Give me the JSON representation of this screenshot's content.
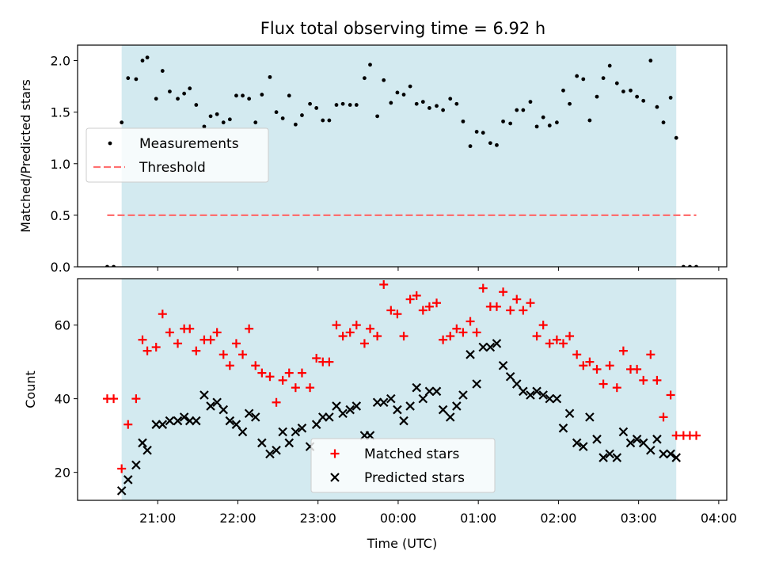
{
  "title": "Flux total observing time = 6.92 h",
  "chart_data": [
    {
      "type": "scatter",
      "ylabel": "Matched/Predicted stars",
      "xlim_hours": [
        20.0,
        28.1
      ],
      "ylim": [
        0,
        2.15
      ],
      "yticks": [
        0.0,
        0.5,
        1.0,
        1.5,
        2.0
      ],
      "ytick_labels": [
        "0.0",
        "0.5",
        "1.0",
        "1.5",
        "2.0"
      ],
      "observing_window_hours": [
        20.55,
        27.47
      ],
      "observing_window_color": "#d3eaf0",
      "threshold": {
        "name": "Threshold",
        "value": 0.5,
        "x_range_hours": [
          20.37,
          27.72
        ],
        "color": "#ff7070",
        "dash": true
      },
      "legend_position": "center-left",
      "series": [
        {
          "name": "Measurements",
          "marker": "dot",
          "color": "#000000",
          "points": [
            [
              20.37,
              0.0
            ],
            [
              20.45,
              0.0
            ],
            [
              20.55,
              1.4
            ],
            [
              20.63,
              1.83
            ],
            [
              20.73,
              1.82
            ],
            [
              20.81,
              2.0
            ],
            [
              20.87,
              2.03
            ],
            [
              20.98,
              1.63
            ],
            [
              21.06,
              1.9
            ],
            [
              21.15,
              1.7
            ],
            [
              21.25,
              1.63
            ],
            [
              21.33,
              1.68
            ],
            [
              21.4,
              1.73
            ],
            [
              21.48,
              1.57
            ],
            [
              21.58,
              1.36
            ],
            [
              21.66,
              1.46
            ],
            [
              21.74,
              1.48
            ],
            [
              21.82,
              1.4
            ],
            [
              21.9,
              1.43
            ],
            [
              21.98,
              1.66
            ],
            [
              22.06,
              1.66
            ],
            [
              22.14,
              1.63
            ],
            [
              22.22,
              1.4
            ],
            [
              22.3,
              1.67
            ],
            [
              22.4,
              1.84
            ],
            [
              22.48,
              1.5
            ],
            [
              22.56,
              1.44
            ],
            [
              22.64,
              1.66
            ],
            [
              22.72,
              1.38
            ],
            [
              22.8,
              1.47
            ],
            [
              22.9,
              1.58
            ],
            [
              22.98,
              1.54
            ],
            [
              23.06,
              1.42
            ],
            [
              23.14,
              1.42
            ],
            [
              23.23,
              1.57
            ],
            [
              23.31,
              1.58
            ],
            [
              23.4,
              1.57
            ],
            [
              23.48,
              1.57
            ],
            [
              23.58,
              1.83
            ],
            [
              23.65,
              1.96
            ],
            [
              23.74,
              1.46
            ],
            [
              23.82,
              1.81
            ],
            [
              23.91,
              1.59
            ],
            [
              23.99,
              1.69
            ],
            [
              24.07,
              1.67
            ],
            [
              24.15,
              1.75
            ],
            [
              24.23,
              1.58
            ],
            [
              24.31,
              1.6
            ],
            [
              24.39,
              1.54
            ],
            [
              24.48,
              1.56
            ],
            [
              24.56,
              1.52
            ],
            [
              24.65,
              1.63
            ],
            [
              24.73,
              1.58
            ],
            [
              24.81,
              1.41
            ],
            [
              24.9,
              1.17
            ],
            [
              24.98,
              1.31
            ],
            [
              25.06,
              1.3
            ],
            [
              25.15,
              1.2
            ],
            [
              25.23,
              1.18
            ],
            [
              25.31,
              1.41
            ],
            [
              25.4,
              1.39
            ],
            [
              25.48,
              1.52
            ],
            [
              25.56,
              1.52
            ],
            [
              25.65,
              1.6
            ],
            [
              25.73,
              1.36
            ],
            [
              25.81,
              1.45
            ],
            [
              25.89,
              1.37
            ],
            [
              25.98,
              1.4
            ],
            [
              26.06,
              1.71
            ],
            [
              26.14,
              1.58
            ],
            [
              26.23,
              1.85
            ],
            [
              26.31,
              1.82
            ],
            [
              26.39,
              1.42
            ],
            [
              26.48,
              1.65
            ],
            [
              26.56,
              1.83
            ],
            [
              26.64,
              1.95
            ],
            [
              26.73,
              1.78
            ],
            [
              26.81,
              1.7
            ],
            [
              26.9,
              1.71
            ],
            [
              26.98,
              1.65
            ],
            [
              27.06,
              1.61
            ],
            [
              27.15,
              2.0
            ],
            [
              27.23,
              1.55
            ],
            [
              27.31,
              1.4
            ],
            [
              27.4,
              1.64
            ],
            [
              27.47,
              1.25
            ],
            [
              27.56,
              0.0
            ],
            [
              27.64,
              0.0
            ],
            [
              27.72,
              0.0
            ]
          ]
        }
      ]
    },
    {
      "type": "scatter",
      "ylabel": "Count",
      "xlabel": "Time (UTC)",
      "xlim_hours": [
        20.0,
        28.1
      ],
      "ylim": [
        12.4,
        72.6
      ],
      "xticks_hours": [
        21,
        22,
        23,
        24,
        25,
        26,
        27,
        28
      ],
      "xtick_labels": [
        "21:00",
        "22:00",
        "23:00",
        "00:00",
        "01:00",
        "02:00",
        "03:00",
        "04:00"
      ],
      "yticks": [
        20,
        40,
        60
      ],
      "ytick_labels": [
        "20",
        "40",
        "60"
      ],
      "observing_window_hours": [
        20.55,
        27.47
      ],
      "observing_window_color": "#d3eaf0",
      "legend_position": "lower-center",
      "series": [
        {
          "name": "Matched stars",
          "marker": "plus",
          "color": "#ff0000",
          "points": [
            [
              20.37,
              40
            ],
            [
              20.45,
              40
            ],
            [
              20.55,
              21
            ],
            [
              20.63,
              33
            ],
            [
              20.73,
              40
            ],
            [
              20.81,
              56
            ],
            [
              20.87,
              53
            ],
            [
              20.98,
              54
            ],
            [
              21.06,
              63
            ],
            [
              21.15,
              58
            ],
            [
              21.25,
              55
            ],
            [
              21.33,
              59
            ],
            [
              21.4,
              59
            ],
            [
              21.48,
              53
            ],
            [
              21.58,
              56
            ],
            [
              21.66,
              56
            ],
            [
              21.74,
              58
            ],
            [
              21.82,
              52
            ],
            [
              21.9,
              49
            ],
            [
              21.98,
              55
            ],
            [
              22.06,
              52
            ],
            [
              22.14,
              59
            ],
            [
              22.22,
              49
            ],
            [
              22.3,
              47
            ],
            [
              22.4,
              46
            ],
            [
              22.48,
              39
            ],
            [
              22.56,
              45
            ],
            [
              22.64,
              47
            ],
            [
              22.72,
              43
            ],
            [
              22.8,
              47
            ],
            [
              22.9,
              43
            ],
            [
              22.98,
              51
            ],
            [
              23.06,
              50
            ],
            [
              23.14,
              50
            ],
            [
              23.23,
              60
            ],
            [
              23.31,
              57
            ],
            [
              23.4,
              58
            ],
            [
              23.48,
              60
            ],
            [
              23.58,
              55
            ],
            [
              23.65,
              59
            ],
            [
              23.74,
              57
            ],
            [
              23.82,
              71
            ],
            [
              23.91,
              64
            ],
            [
              23.99,
              63
            ],
            [
              24.07,
              57
            ],
            [
              24.15,
              67
            ],
            [
              24.23,
              68
            ],
            [
              24.31,
              64
            ],
            [
              24.39,
              65
            ],
            [
              24.48,
              66
            ],
            [
              24.56,
              56
            ],
            [
              24.65,
              57
            ],
            [
              24.73,
              59
            ],
            [
              24.81,
              58
            ],
            [
              24.9,
              61
            ],
            [
              24.98,
              58
            ],
            [
              25.06,
              70
            ],
            [
              25.15,
              65
            ],
            [
              25.23,
              65
            ],
            [
              25.31,
              69
            ],
            [
              25.4,
              64
            ],
            [
              25.48,
              67
            ],
            [
              25.56,
              64
            ],
            [
              25.65,
              66
            ],
            [
              25.73,
              57
            ],
            [
              25.81,
              60
            ],
            [
              25.89,
              55
            ],
            [
              25.98,
              56
            ],
            [
              26.06,
              55
            ],
            [
              26.14,
              57
            ],
            [
              26.23,
              52
            ],
            [
              26.31,
              49
            ],
            [
              26.39,
              50
            ],
            [
              26.48,
              48
            ],
            [
              26.56,
              44
            ],
            [
              26.64,
              49
            ],
            [
              26.73,
              43
            ],
            [
              26.81,
              53
            ],
            [
              26.9,
              48
            ],
            [
              26.98,
              48
            ],
            [
              27.06,
              45
            ],
            [
              27.15,
              52
            ],
            [
              27.23,
              45
            ],
            [
              27.31,
              35
            ],
            [
              27.4,
              41
            ],
            [
              27.47,
              30
            ],
            [
              27.56,
              30
            ],
            [
              27.64,
              30
            ],
            [
              27.72,
              30
            ]
          ]
        },
        {
          "name": "Predicted stars",
          "marker": "x",
          "color": "#000000",
          "points": [
            [
              20.55,
              15
            ],
            [
              20.63,
              18
            ],
            [
              20.73,
              22
            ],
            [
              20.81,
              28
            ],
            [
              20.87,
              26
            ],
            [
              20.98,
              33
            ],
            [
              21.06,
              33
            ],
            [
              21.15,
              34
            ],
            [
              21.25,
              34
            ],
            [
              21.33,
              35
            ],
            [
              21.4,
              34
            ],
            [
              21.48,
              34
            ],
            [
              21.58,
              41
            ],
            [
              21.66,
              38
            ],
            [
              21.74,
              39
            ],
            [
              21.82,
              37
            ],
            [
              21.9,
              34
            ],
            [
              21.98,
              33
            ],
            [
              22.06,
              31
            ],
            [
              22.14,
              36
            ],
            [
              22.22,
              35
            ],
            [
              22.3,
              28
            ],
            [
              22.4,
              25
            ],
            [
              22.48,
              26
            ],
            [
              22.56,
              31
            ],
            [
              22.64,
              28
            ],
            [
              22.72,
              31
            ],
            [
              22.8,
              32
            ],
            [
              22.9,
              27
            ],
            [
              22.98,
              33
            ],
            [
              23.06,
              35
            ],
            [
              23.14,
              35
            ],
            [
              23.23,
              38
            ],
            [
              23.31,
              36
            ],
            [
              23.4,
              37
            ],
            [
              23.48,
              38
            ],
            [
              23.58,
              30
            ],
            [
              23.65,
              30
            ],
            [
              23.74,
              39
            ],
            [
              23.82,
              39
            ],
            [
              23.91,
              40
            ],
            [
              23.99,
              37
            ],
            [
              24.07,
              34
            ],
            [
              24.15,
              38
            ],
            [
              24.23,
              43
            ],
            [
              24.31,
              40
            ],
            [
              24.39,
              42
            ],
            [
              24.48,
              42
            ],
            [
              24.56,
              37
            ],
            [
              24.65,
              35
            ],
            [
              24.73,
              38
            ],
            [
              24.81,
              41
            ],
            [
              24.9,
              52
            ],
            [
              24.98,
              44
            ],
            [
              25.06,
              54
            ],
            [
              25.15,
              54
            ],
            [
              25.23,
              55
            ],
            [
              25.31,
              49
            ],
            [
              25.4,
              46
            ],
            [
              25.48,
              44
            ],
            [
              25.56,
              42
            ],
            [
              25.65,
              41
            ],
            [
              25.73,
              42
            ],
            [
              25.81,
              41
            ],
            [
              25.89,
              40
            ],
            [
              25.98,
              40
            ],
            [
              26.06,
              32
            ],
            [
              26.14,
              36
            ],
            [
              26.23,
              28
            ],
            [
              26.31,
              27
            ],
            [
              26.39,
              35
            ],
            [
              26.48,
              29
            ],
            [
              26.56,
              24
            ],
            [
              26.64,
              25
            ],
            [
              26.73,
              24
            ],
            [
              26.81,
              31
            ],
            [
              26.9,
              28
            ],
            [
              26.98,
              29
            ],
            [
              27.06,
              28
            ],
            [
              27.15,
              26
            ],
            [
              27.23,
              29
            ],
            [
              27.31,
              25
            ],
            [
              27.4,
              25
            ],
            [
              27.47,
              24
            ]
          ]
        }
      ]
    }
  ]
}
